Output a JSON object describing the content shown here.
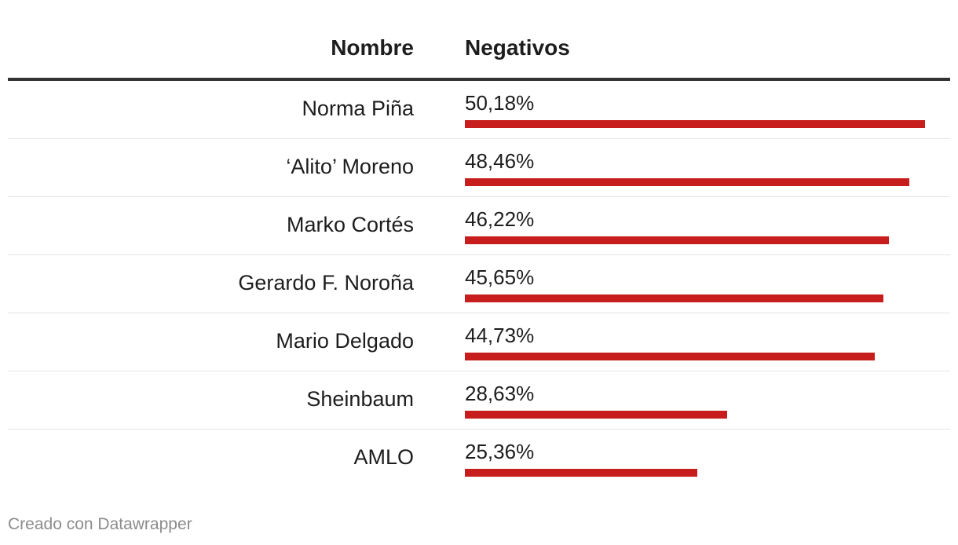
{
  "chart_data": {
    "type": "table",
    "columns": [
      "Nombre",
      "Negativos"
    ],
    "rows": [
      {
        "name": "Norma Piña",
        "label": "50,18%",
        "value": 50.18
      },
      {
        "name": "‘Alito’ Moreno",
        "label": "48,46%",
        "value": 48.46
      },
      {
        "name": "Marko Cortés",
        "label": "46,22%",
        "value": 46.22
      },
      {
        "name": "Gerardo F. Noroña",
        "label": "45,65%",
        "value": 45.65
      },
      {
        "name": "Mario Delgado",
        "label": "44,73%",
        "value": 44.73
      },
      {
        "name": "Sheinbaum",
        "label": "28,63%",
        "value": 28.63
      },
      {
        "name": "AMLO",
        "label": "25,36%",
        "value": 25.36
      }
    ],
    "bar_color": "#c71e1d",
    "max_value": 50.18
  },
  "footer": "Creado con Datawrapper"
}
